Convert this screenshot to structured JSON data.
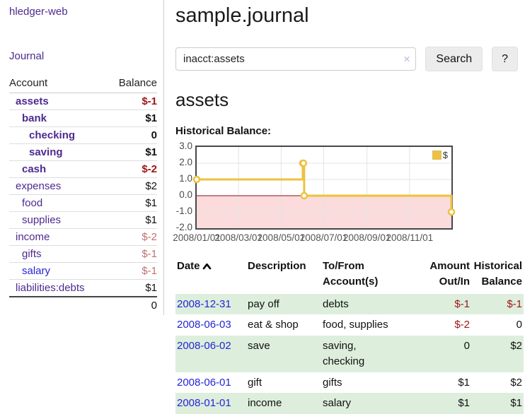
{
  "colors": {
    "purple": "#4e2a8e",
    "blue": "#2525d6",
    "negative": "#a01616",
    "negative_muted": "#c17070",
    "row_green": "#ddeedd",
    "chart_line": "#edc240",
    "chart_fill_negative": "#fbdbdb",
    "chart_zero": "#8b0f0f",
    "chart_grid": "#e4e4e4",
    "chart_border": "#474747"
  },
  "sidebar": {
    "brand": "hledger-web",
    "journal_label": "Journal",
    "accounts": {
      "account_header": "Account",
      "balance_header": "Balance",
      "rows": [
        {
          "name": "assets",
          "level": 1,
          "bold": true,
          "link": "purple",
          "balance": "$-1",
          "balance_style": "neg"
        },
        {
          "name": "bank",
          "level": 2,
          "bold": true,
          "link": "purple",
          "balance": "$1",
          "balance_style": ""
        },
        {
          "name": "checking",
          "level": 3,
          "bold": true,
          "link": "purple",
          "balance": "0",
          "balance_style": ""
        },
        {
          "name": "saving",
          "level": 3,
          "bold": true,
          "link": "purple",
          "balance": "$1",
          "balance_style": ""
        },
        {
          "name": "cash",
          "level": 2,
          "bold": true,
          "link": "purple",
          "balance": "$-2",
          "balance_style": "neg"
        },
        {
          "name": "expenses",
          "level": 1,
          "bold": false,
          "link": "purple",
          "balance": "$2",
          "balance_style": ""
        },
        {
          "name": "food",
          "level": 2,
          "bold": false,
          "link": "purple",
          "balance": "$1",
          "balance_style": ""
        },
        {
          "name": "supplies",
          "level": 2,
          "bold": false,
          "link": "purple",
          "balance": "$1",
          "balance_style": ""
        },
        {
          "name": "income",
          "level": 1,
          "bold": false,
          "link": "purple",
          "balance": "$-2",
          "balance_style": "neg-muted"
        },
        {
          "name": "gifts",
          "level": 2,
          "bold": false,
          "link": "purple",
          "balance": "$-1",
          "balance_style": "neg-muted"
        },
        {
          "name": "salary",
          "level": 2,
          "bold": false,
          "link": "blue",
          "balance": "$-1",
          "balance_style": "neg-muted"
        },
        {
          "name": "liabilities:debts",
          "level": 1,
          "bold": false,
          "link": "purple",
          "balance": "$1",
          "balance_style": ""
        }
      ],
      "total": "0"
    }
  },
  "header": {
    "title": "sample.journal"
  },
  "search": {
    "value": "inacct:assets",
    "clear_icon": "×",
    "button_label": "Search",
    "help_label": "?"
  },
  "account_page": {
    "title": "assets",
    "chart_label": "Historical Balance:"
  },
  "chart_data": {
    "type": "line",
    "step": true,
    "title": "Historical Balance",
    "x_range": [
      "2008-01-01",
      "2008-12-31"
    ],
    "ylim": [
      -2.0,
      3.0
    ],
    "x_ticks": [
      "2008/01/01",
      "2008/03/01",
      "2008/05/01",
      "2008/07/01",
      "2008/09/01",
      "2008/11/01"
    ],
    "y_ticks": [
      3.0,
      2.0,
      1.0,
      0.0,
      -1.0,
      -2.0
    ],
    "legend_position": "top-right",
    "series": [
      {
        "name": "$",
        "points": [
          [
            "2008-01-01",
            1
          ],
          [
            "2008-06-01",
            2
          ],
          [
            "2008-06-02",
            2
          ],
          [
            "2008-06-03",
            0
          ],
          [
            "2008-12-31",
            -1
          ]
        ]
      }
    ]
  },
  "register": {
    "columns": {
      "date": "Date",
      "description": "Description",
      "accounts": "To/From\nAccount(s)",
      "amount": "Amount\nOut/In",
      "balance": "Historical\nBalance"
    },
    "rows": [
      {
        "date": "2008-12-31",
        "description": "pay off",
        "accounts": "debts",
        "amount": "$-1",
        "amount_neg": true,
        "balance": "$-1",
        "balance_neg": true
      },
      {
        "date": "2008-06-03",
        "description": "eat & shop",
        "accounts": "food, supplies",
        "amount": "$-2",
        "amount_neg": true,
        "balance": "0",
        "balance_neg": false
      },
      {
        "date": "2008-06-02",
        "description": "save",
        "accounts": "saving,\nchecking",
        "amount": "0",
        "amount_neg": false,
        "balance": "$2",
        "balance_neg": false
      },
      {
        "date": "2008-06-01",
        "description": "gift",
        "accounts": "gifts",
        "amount": "$1",
        "amount_neg": false,
        "balance": "$2",
        "balance_neg": false
      },
      {
        "date": "2008-01-01",
        "description": "income",
        "accounts": "salary",
        "amount": "$1",
        "amount_neg": false,
        "balance": "$1",
        "balance_neg": false
      }
    ]
  }
}
